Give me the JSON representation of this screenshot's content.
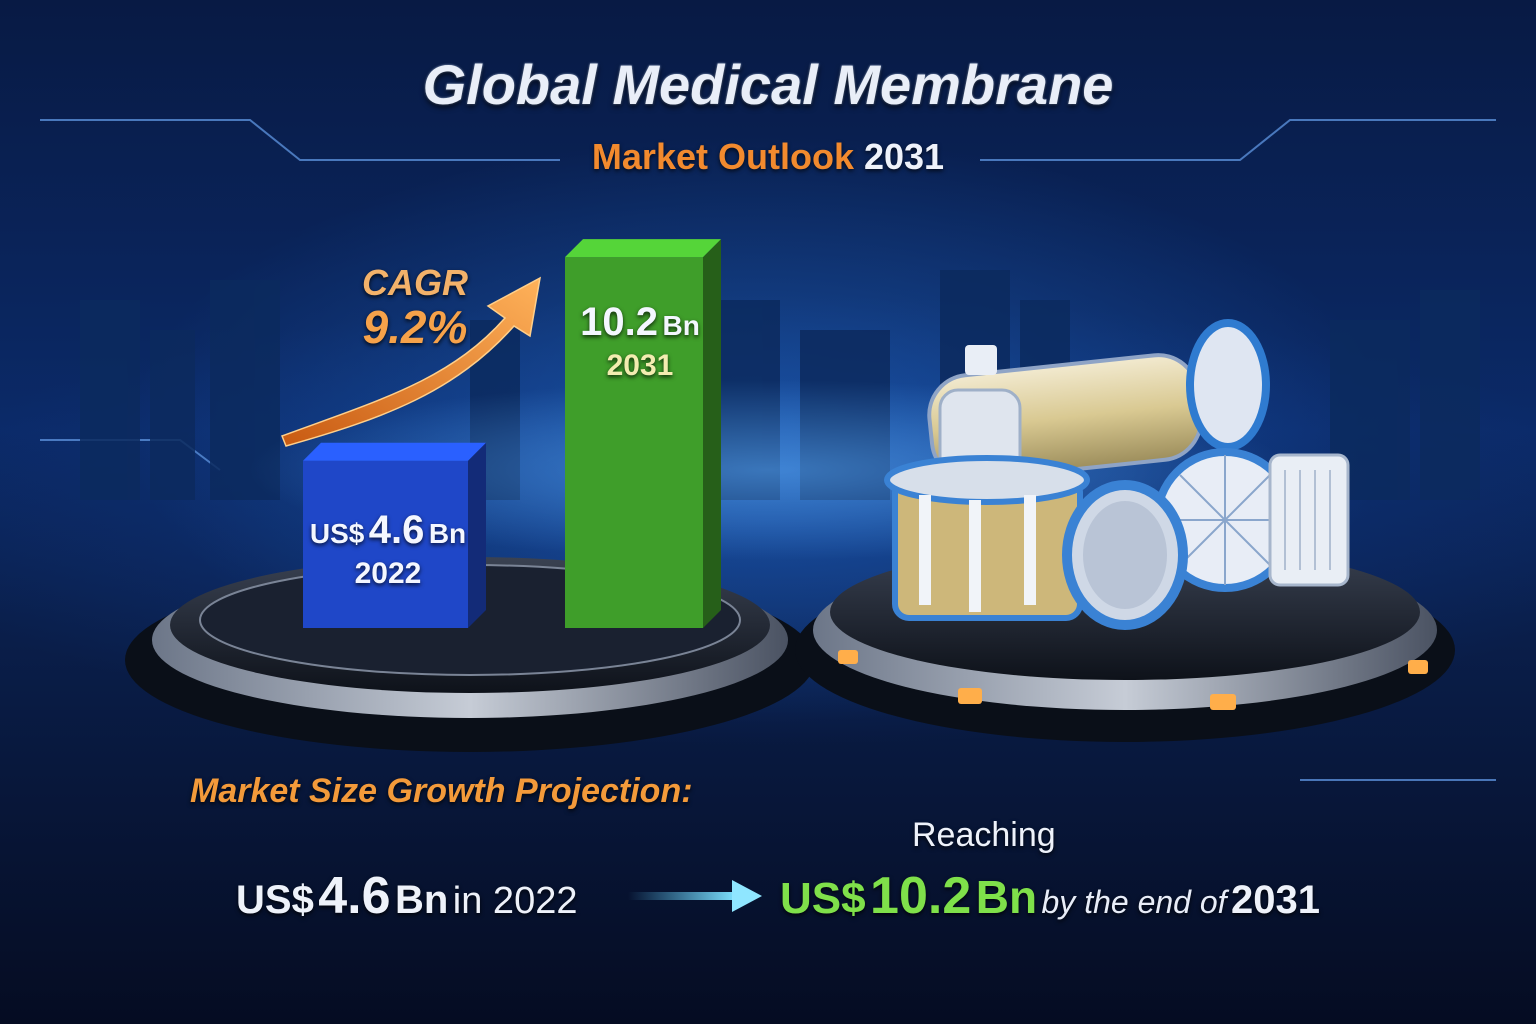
{
  "title": "Global Medical Membrane",
  "subtitle_prefix": "Market Outlook",
  "subtitle_year": "2031",
  "cagr": {
    "label": "CAGR",
    "value": "9.2%"
  },
  "bars": [
    {
      "prefix": "US$",
      "value_text": "4.6",
      "unit": "Bn",
      "year": "2022"
    },
    {
      "prefix": "",
      "value_text": "10.2",
      "unit": "Bn",
      "year": "2031"
    }
  ],
  "growth": {
    "heading": "Market Size Growth Projection:",
    "from": {
      "currency": "US$",
      "number": "4.6",
      "unit": "Bn",
      "tail": "in 2022"
    },
    "reaching": "Reaching",
    "to": {
      "currency": "US$",
      "number": "10.2",
      "unit": "Bn",
      "tail": "by the end of",
      "year": "2031"
    }
  },
  "colors": {
    "bar_2022": "#1f47c8",
    "bar_2031": "#3f9e2a",
    "accent": "#f28a2e",
    "highlight": "#7fe04a"
  },
  "chart_data": {
    "type": "bar",
    "categories": [
      "2022",
      "2031"
    ],
    "values": [
      4.6,
      10.2
    ],
    "title": "Global Medical Membrane",
    "subtitle": "Market Outlook 2031",
    "xlabel": "",
    "ylabel": "",
    "ylim": [
      0,
      11
    ],
    "annotations": [
      "CAGR 9.2%"
    ]
  }
}
